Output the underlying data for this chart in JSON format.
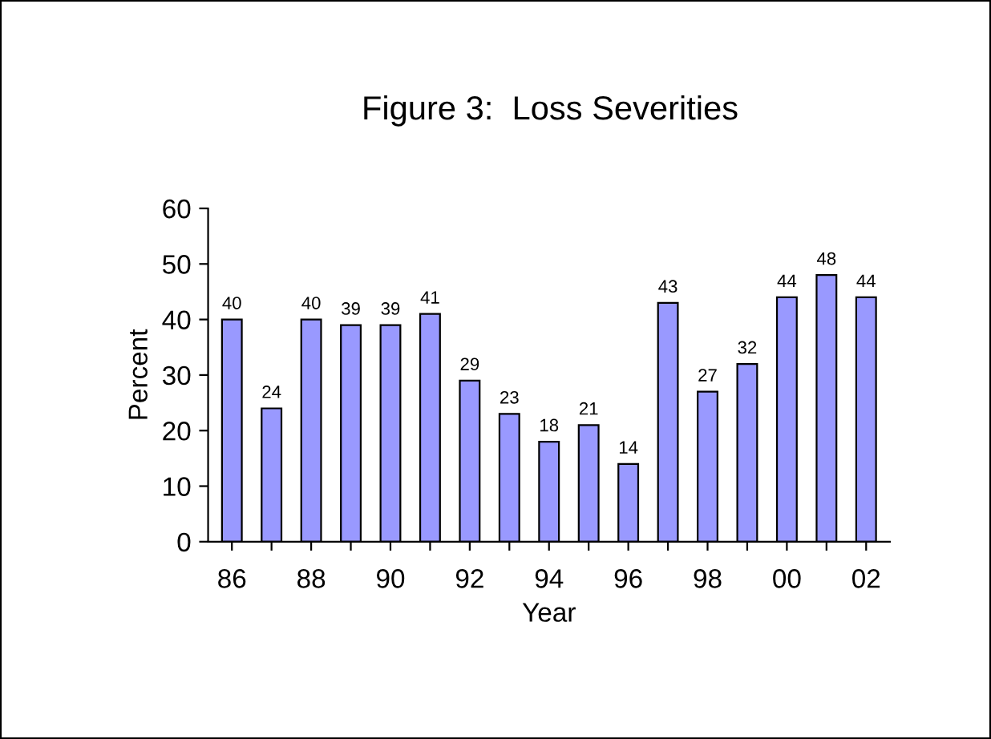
{
  "chart_data": {
    "type": "bar",
    "title": "Figure 3:  Loss Severities",
    "xlabel": "Year",
    "ylabel": "Percent",
    "categories": [
      "86",
      null,
      "88",
      null,
      "90",
      null,
      "92",
      null,
      "94",
      null,
      "96",
      null,
      "98",
      null,
      "00",
      null,
      "02"
    ],
    "values": [
      40,
      24,
      40,
      39,
      39,
      41,
      29,
      23,
      18,
      21,
      14,
      43,
      27,
      32,
      44,
      48,
      44
    ],
    "color": "#9999ff",
    "ylim": [
      0,
      60
    ],
    "yticks": [
      0,
      10,
      20,
      30,
      40,
      50,
      60
    ],
    "grid": false,
    "data_labels": true
  }
}
